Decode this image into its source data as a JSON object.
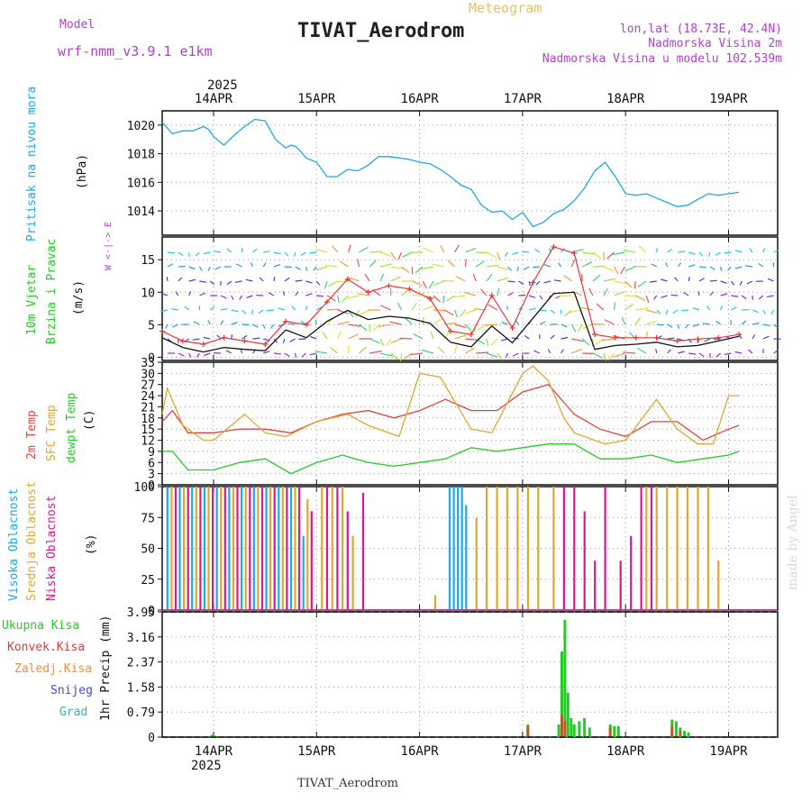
{
  "header": {
    "model_label": "Model",
    "model_name": "wrf-nmm_v3.9.1 e1km",
    "product": "Meteogram",
    "station": "TIVAT_Aerodrom",
    "lonlat": "lon,lat (18.73E, 42.4N)",
    "altitude": "Nadmorska Visina 2m",
    "model_altitude": "Nadmorska Visina u modelu 102.539m",
    "credit": "made by Angel",
    "footer_station": "TIVAT_Aerodrom"
  },
  "colors": {
    "pressure": "#1ea8e6",
    "wind_speed": "#111111",
    "gust": "#ee3333",
    "temp2m": "#e84040",
    "sfc_temp": "#dca830",
    "dewpoint": "#22cc22",
    "high_cloud": "#1ea8e6",
    "mid_cloud": "#dca830",
    "low_cloud": "#d81890",
    "total_precip": "#22cc22",
    "conv_precip": "#ee3333",
    "frozen_precip": "#ff8833",
    "snow": "#4444ee",
    "hail": "#22bbbb",
    "label_purple": "#b040d0",
    "label_gold": "#e8c060"
  },
  "axis": {
    "year": "2025",
    "day_labels": [
      "14APR",
      "15APR",
      "16APR",
      "17APR",
      "18APR",
      "19APR"
    ]
  },
  "chart_data": [
    {
      "type": "line",
      "panel": "pressure",
      "ylabel": [
        "Pritisak na nivou mora",
        "(hPa)"
      ],
      "ylim": [
        1012.3,
        1021
      ],
      "yticks": [
        1014,
        1016,
        1018,
        1020
      ],
      "grid": true,
      "series": [
        {
          "x": [
            0,
            0.1,
            0.2,
            0.3,
            0.4,
            0.45,
            0.5,
            0.6,
            0.7,
            0.8,
            0.9,
            1.0,
            1.1,
            1.2,
            1.25,
            1.3,
            1.4,
            1.5,
            1.6,
            1.7,
            1.8,
            1.9,
            2.0,
            2.1,
            2.2,
            2.3,
            2.4,
            2.5,
            2.6,
            2.7,
            2.8,
            2.9,
            3.0,
            3.1,
            3.2,
            3.3,
            3.4,
            3.5,
            3.6,
            3.7,
            3.8,
            3.9,
            4.0,
            4.1,
            4.2,
            4.3,
            4.4,
            4.5,
            4.6,
            4.7,
            4.8,
            4.9,
            5.0,
            5.1,
            5.2,
            5.3,
            5.4,
            5.5,
            5.6
          ],
          "values": [
            1020.2,
            1019.4,
            1019.6,
            1019.6,
            1019.9,
            1019.7,
            1019.2,
            1018.6,
            1019.3,
            1019.9,
            1020.4,
            1020.3,
            1019.0,
            1018.4,
            1018.6,
            1018.5,
            1017.7,
            1017.4,
            1016.4,
            1016.4,
            1016.9,
            1016.8,
            1017.2,
            1017.8,
            1017.8,
            1017.7,
            1017.6,
            1017.4,
            1017.3,
            1016.9,
            1016.4,
            1015.8,
            1015.5,
            1014.4,
            1013.9,
            1014.0,
            1013.4,
            1013.9,
            1012.9,
            1013.2,
            1013.8,
            1014.1,
            1014.7,
            1015.6,
            1016.8,
            1017.4,
            1016.4,
            1015.2,
            1015.1,
            1015.2,
            1014.9,
            1014.6,
            1014.3,
            1014.4,
            1014.8,
            1015.2,
            1015.1,
            1015.2,
            1015.3
          ]
        }
      ]
    },
    {
      "type": "line",
      "panel": "wind",
      "ylabel": [
        "10m Vjetar",
        "Brzina i Pravac",
        "(m/s)"
      ],
      "direction_legend": "W <-|-> E",
      "ylim": [
        -0.5,
        18.5
      ],
      "yticks": [
        0,
        5,
        10,
        15
      ],
      "grid": true,
      "series": [
        {
          "name": "speed",
          "x": [
            0,
            0.2,
            0.4,
            0.6,
            0.8,
            1.0,
            1.2,
            1.4,
            1.6,
            1.8,
            2.0,
            2.2,
            2.4,
            2.6,
            2.8,
            3.0,
            3.2,
            3.4,
            3.6,
            3.8,
            4.0,
            4.2,
            4.4,
            4.6,
            4.8,
            5.0,
            5.2,
            5.4,
            5.6
          ],
          "values": [
            3.0,
            1.5,
            0.8,
            1.5,
            1.2,
            1.0,
            4.2,
            3.0,
            5.5,
            7.2,
            5.8,
            6.3,
            6.0,
            5.2,
            2.3,
            1.6,
            4.8,
            2.2,
            6.0,
            9.8,
            10.0,
            1.2,
            1.8,
            2.0,
            2.3,
            1.6,
            1.8,
            2.5,
            3.2
          ]
        },
        {
          "name": "gust",
          "x": [
            0,
            0.2,
            0.4,
            0.6,
            0.8,
            1.0,
            1.2,
            1.4,
            1.6,
            1.8,
            2.0,
            2.2,
            2.4,
            2.6,
            2.8,
            3.0,
            3.2,
            3.4,
            3.6,
            3.8,
            4.0,
            4.2,
            4.4,
            4.6,
            4.8,
            5.0,
            5.2,
            5.4,
            5.6
          ],
          "values": [
            4.0,
            2.5,
            2.0,
            3.0,
            2.5,
            2.0,
            5.5,
            5.0,
            8.5,
            12.0,
            10.0,
            11.0,
            10.5,
            9.0,
            4.0,
            3.5,
            9.5,
            4.5,
            11.5,
            17.0,
            16.0,
            3.5,
            3.0,
            3.0,
            3.0,
            2.5,
            2.8,
            3.0,
            3.5
          ]
        }
      ]
    },
    {
      "type": "line",
      "panel": "temperature",
      "ylabel": [
        "2m Temp",
        "SFC Temp",
        "dewpt Temp",
        "(C)"
      ],
      "ylim": [
        0,
        33
      ],
      "yticks": [
        0,
        3,
        6,
        9,
        12,
        15,
        18,
        21,
        24,
        27,
        30,
        33
      ],
      "grid": true,
      "series": [
        {
          "name": "2m Temp",
          "x": [
            0,
            0.1,
            0.25,
            0.5,
            0.75,
            1.0,
            1.25,
            1.5,
            1.75,
            2.0,
            2.25,
            2.5,
            2.75,
            3.0,
            3.25,
            3.5,
            3.75,
            4.0,
            4.25,
            4.5,
            4.75,
            5.0,
            5.25,
            5.5,
            5.6
          ],
          "values": [
            17,
            20,
            14,
            14,
            15,
            15,
            14,
            17,
            19,
            20,
            18,
            20,
            23,
            20,
            20,
            25,
            27,
            19,
            15,
            13,
            17,
            17,
            12,
            15,
            16
          ]
        },
        {
          "name": "SFC Temp",
          "x": [
            0,
            0.05,
            0.2,
            0.4,
            0.5,
            0.8,
            1.0,
            1.2,
            1.5,
            1.8,
            2.0,
            2.3,
            2.5,
            2.7,
            3.0,
            3.2,
            3.5,
            3.6,
            3.75,
            3.9,
            4.0,
            4.3,
            4.5,
            4.8,
            5.0,
            5.2,
            5.35,
            5.5,
            5.6
          ],
          "values": [
            19,
            26,
            16,
            12,
            12,
            19,
            14,
            13,
            17,
            19,
            16,
            13,
            30,
            29,
            15,
            14,
            30,
            32,
            28,
            18,
            14,
            11,
            12,
            23,
            15,
            11,
            11,
            24,
            24
          ]
        },
        {
          "name": "dewpt Temp",
          "x": [
            0,
            0.1,
            0.25,
            0.5,
            0.75,
            1.0,
            1.25,
            1.5,
            1.75,
            2.0,
            2.25,
            2.5,
            2.75,
            3.0,
            3.25,
            3.5,
            3.75,
            4.0,
            4.25,
            4.5,
            4.75,
            5.0,
            5.25,
            5.5,
            5.6
          ],
          "values": [
            9,
            9,
            4,
            4,
            6,
            7,
            3,
            6,
            8,
            6,
            5,
            6,
            7,
            10,
            9,
            10,
            11,
            11,
            7,
            7,
            8,
            6,
            7,
            8,
            9
          ]
        }
      ]
    },
    {
      "type": "bar",
      "panel": "cloud",
      "ylabel": [
        "Visoka Oblacnost",
        "Srednja Oblacnost",
        "Niska Oblacnost",
        "(%)"
      ],
      "ylim": [
        0,
        100
      ],
      "yticks": [
        0,
        25,
        50,
        75,
        100
      ],
      "grid": true,
      "series": [
        {
          "name": "high",
          "x": [
            0.05,
            0.17,
            0.29,
            0.41,
            0.53,
            0.65,
            0.77,
            0.89,
            1.01,
            1.13,
            1.25,
            1.37,
            2.79,
            2.83,
            2.87,
            2.91,
            2.95
          ],
          "values": [
            100,
            100,
            100,
            100,
            100,
            100,
            100,
            100,
            100,
            100,
            100,
            60,
            100,
            100,
            100,
            100,
            85
          ]
        },
        {
          "name": "mid",
          "x": [
            0.09,
            0.21,
            0.33,
            0.45,
            0.57,
            0.69,
            0.81,
            0.93,
            1.05,
            1.17,
            1.29,
            1.41,
            1.55,
            1.65,
            1.75,
            1.85,
            2.65,
            3.05,
            3.15,
            3.25,
            3.35,
            3.45,
            3.55,
            3.65,
            3.8,
            4.7,
            4.8,
            4.9,
            5.0,
            5.1,
            5.2,
            5.3,
            5.4
          ],
          "values": [
            100,
            100,
            100,
            100,
            100,
            100,
            100,
            100,
            100,
            100,
            100,
            90,
            100,
            100,
            100,
            60,
            12,
            75,
            100,
            100,
            100,
            100,
            100,
            100,
            100,
            100,
            100,
            100,
            100,
            100,
            100,
            100,
            40
          ]
        },
        {
          "name": "low",
          "x": [
            0.13,
            0.25,
            0.37,
            0.49,
            0.61,
            0.73,
            0.85,
            0.97,
            1.09,
            1.21,
            1.33,
            1.45,
            1.6,
            1.7,
            1.8,
            1.95,
            3.9,
            4.0,
            4.1,
            4.2,
            4.3,
            4.45,
            4.55,
            4.65,
            4.75
          ],
          "values": [
            100,
            100,
            100,
            100,
            100,
            100,
            100,
            100,
            100,
            100,
            100,
            80,
            100,
            100,
            80,
            95,
            100,
            100,
            80,
            40,
            100,
            40,
            60,
            100,
            100
          ]
        }
      ]
    },
    {
      "type": "bar",
      "panel": "precip",
      "ylabel": [
        "1hr Precip (mm)"
      ],
      "legend": [
        "Ukupna Kisa",
        "Konvek.Kisa",
        "Zaledj.Kisa",
        "Snijeg",
        "Grad"
      ],
      "ylim": [
        0,
        3.95
      ],
      "yticks": [
        0,
        0.79,
        1.58,
        2.37,
        3.16,
        3.95
      ],
      "grid": true,
      "series": [
        {
          "name": "Ukupna Kisa",
          "x": [
            0.48,
            0.5,
            3.55,
            3.85,
            3.88,
            3.91,
            3.94,
            3.97,
            4.0,
            4.05,
            4.1,
            4.15,
            4.35,
            4.39,
            4.43,
            4.95,
            4.99,
            5.03,
            5.07,
            5.11
          ],
          "values": [
            0.07,
            0.06,
            0.4,
            0.4,
            2.7,
            3.7,
            1.4,
            0.6,
            0.4,
            0.5,
            0.6,
            0.3,
            0.4,
            0.35,
            0.35,
            0.55,
            0.5,
            0.3,
            0.2,
            0.15
          ]
        },
        {
          "name": "Konvek.Kisa",
          "x": [
            3.55,
            3.88,
            3.91,
            4.35,
            4.95,
            5.03
          ],
          "values": [
            0.35,
            0.7,
            0.5,
            0.3,
            0.35,
            0.2
          ]
        }
      ]
    }
  ]
}
